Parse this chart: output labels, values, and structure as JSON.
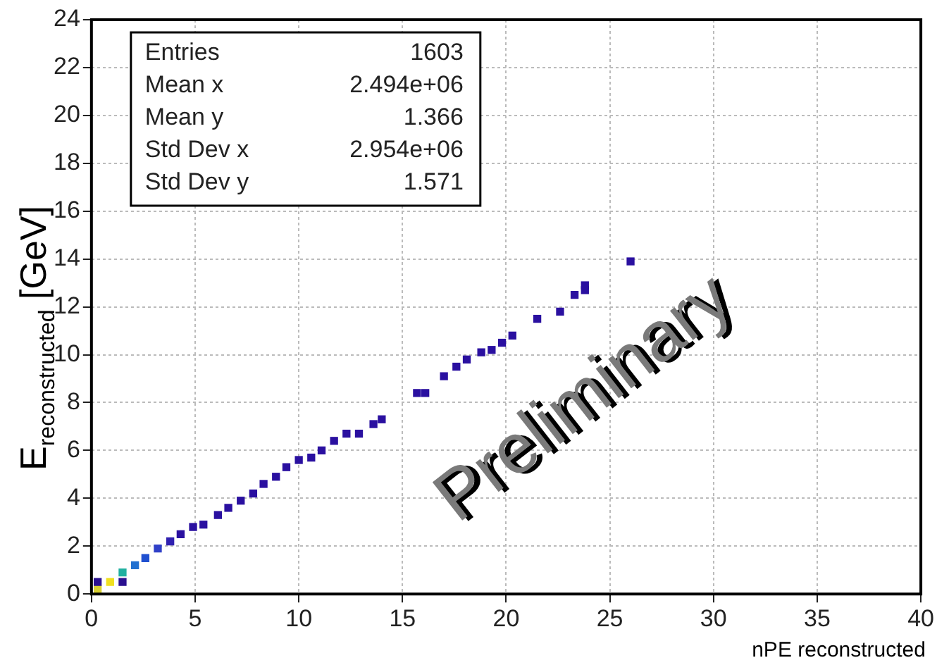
{
  "chart_data": {
    "type": "scatter",
    "xlabel": "nPE reconstructed",
    "ylabel": "E$_{reconstructed}$ [GeV]",
    "x": [
      0.3,
      0.3,
      0.9,
      1.5,
      1.5,
      2.1,
      2.6,
      3.2,
      3.8,
      4.3,
      4.9,
      5.4,
      6.1,
      6.6,
      7.2,
      7.8,
      8.3,
      8.9,
      9.4,
      10.0,
      10.6,
      11.1,
      11.7,
      12.3,
      12.9,
      13.6,
      14.0,
      15.7,
      16.1,
      17.0,
      17.6,
      18.1,
      18.8,
      19.3,
      19.8,
      20.3,
      21.5,
      22.6,
      23.3,
      23.8,
      23.8,
      26.0
    ],
    "values": [
      0.2,
      0.5,
      0.5,
      0.5,
      0.9,
      1.2,
      1.5,
      1.9,
      2.2,
      2.5,
      2.8,
      2.9,
      3.3,
      3.6,
      3.9,
      4.2,
      4.6,
      4.9,
      5.3,
      5.6,
      5.7,
      6.0,
      6.4,
      6.7,
      6.7,
      7.1,
      7.3,
      8.4,
      8.4,
      9.1,
      9.5,
      9.8,
      10.1,
      10.2,
      10.5,
      10.8,
      11.5,
      11.8,
      12.5,
      12.7,
      12.9,
      13.9
    ],
    "colors": [
      "#d8d030",
      "#2a1090",
      "#f0e020",
      "#2a1090",
      "#20b0a0",
      "#2070d0",
      "#2050d0",
      "#3040c8",
      "#3020b0",
      "#2a10a0",
      "#2a10a0",
      "#2a10a0",
      "#2a10a0",
      "#2a10a0",
      "#2a10a0",
      "#2a10a0",
      "#2a10a0",
      "#2a10a0",
      "#2a10a0",
      "#2a10a0",
      "#2a10a0",
      "#2a10a0",
      "#2a10a0",
      "#2a10a0",
      "#2a10a0",
      "#2a10a0",
      "#2a10a0",
      "#2a10a0",
      "#2a10a0",
      "#2a10a0",
      "#2a10a0",
      "#2a10a0",
      "#2a10a0",
      "#2a10a0",
      "#2a10a0",
      "#2a10a0",
      "#2a10a0",
      "#2a10a0",
      "#2a10a0",
      "#2a10a0",
      "#2a10a0",
      "#2a10a0"
    ],
    "marker": "square",
    "grid": true,
    "legend": false,
    "xlim": [
      0,
      40
    ],
    "xticks": [
      0,
      5,
      10,
      15,
      20,
      25,
      30,
      35,
      40
    ],
    "ylim": [
      0,
      24
    ],
    "yticks": [
      0,
      2,
      4,
      6,
      8,
      10,
      12,
      14,
      16,
      18,
      20,
      22,
      24
    ],
    "annotations": [
      "Entries",
      "1603",
      "Mean x",
      "2.494e+06",
      "Mean y",
      "1.366",
      "Std Dev x",
      "2.954e+06",
      "Std Dev y",
      "1.571",
      "Preliminary"
    ]
  }
}
